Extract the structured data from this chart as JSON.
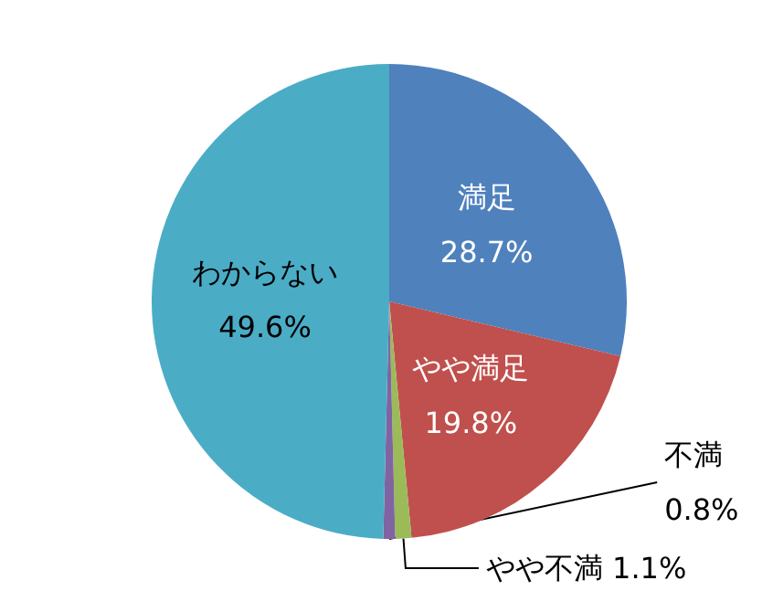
{
  "chart_data": {
    "type": "pie",
    "categories": [
      "満足",
      "やや満足",
      "やや不満",
      "不満",
      "わからない"
    ],
    "values": [
      28.7,
      19.8,
      1.1,
      0.8,
      49.6
    ],
    "value_labels": [
      "28.7%",
      "19.8%",
      "1.1%",
      "0.8%",
      "49.6%"
    ],
    "colors": [
      "#4f81bd",
      "#c0504d",
      "#9bbb59",
      "#8064a2",
      "#4bacc6"
    ],
    "legend": false
  }
}
